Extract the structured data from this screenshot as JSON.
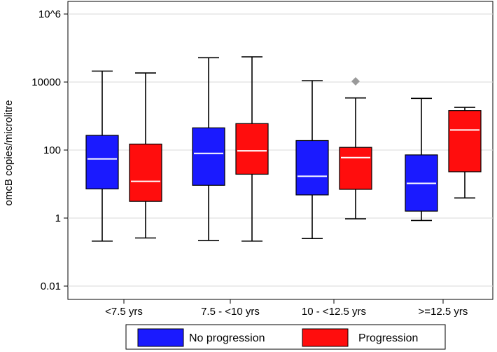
{
  "chart_data": {
    "type": "box",
    "scale": "log10",
    "ylabel": "omcB copies/microlitre",
    "xlabel": "",
    "ylim": [
      0.001,
      1000000
    ],
    "yticks": [
      {
        "value": 0.01,
        "label": "0.01"
      },
      {
        "value": 1,
        "label": "1"
      },
      {
        "value": 100,
        "label": "100"
      },
      {
        "value": 10000,
        "label": "10000"
      },
      {
        "value": 1000000,
        "label": "10^6"
      }
    ],
    "grid": true,
    "legend_position": "bottom",
    "categories": [
      "<7.5 yrs",
      "7.5 - <10 yrs",
      "10 - <12.5 yrs",
      ">=12.5 yrs"
    ],
    "series": [
      {
        "name": "No progression",
        "color": "#1a1aff",
        "boxes": [
          {
            "whisker_low": 0.21,
            "q1": 7.2,
            "median": 55,
            "q3": 270,
            "whisker_high": 21000
          },
          {
            "whisker_low": 0.22,
            "q1": 9.2,
            "median": 80,
            "q3": 450,
            "whisker_high": 52000
          },
          {
            "whisker_low": 0.25,
            "q1": 4.8,
            "median": 17,
            "q3": 190,
            "whisker_high": 11000
          },
          {
            "whisker_low": 0.85,
            "q1": 1.6,
            "median": 10.5,
            "q3": 72,
            "whisker_high": 3300
          }
        ]
      },
      {
        "name": "Progression",
        "color": "#ff0d0d",
        "boxes": [
          {
            "whisker_low": 0.26,
            "q1": 3.1,
            "median": 12,
            "q3": 150,
            "whisker_high": 18500
          },
          {
            "whisker_low": 0.21,
            "q1": 19.5,
            "median": 95,
            "q3": 600,
            "whisker_high": 55000
          },
          {
            "whisker_low": 0.95,
            "q1": 7.0,
            "median": 60,
            "q3": 120,
            "whisker_high": 3400,
            "outliers": [
              10500
            ]
          },
          {
            "whisker_low": 3.9,
            "q1": 23,
            "median": 390,
            "q3": 1450,
            "whisker_high": 1800
          }
        ]
      }
    ]
  }
}
